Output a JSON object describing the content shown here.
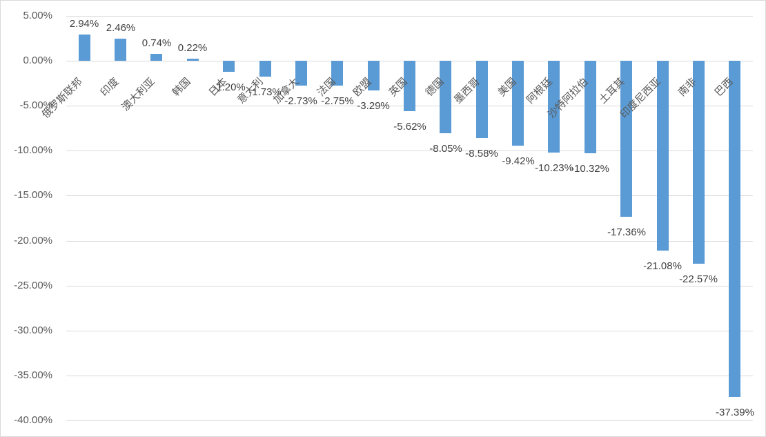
{
  "chart_data": {
    "type": "bar",
    "title": "",
    "legend": "none",
    "grid": true,
    "categories": [
      "俄罗斯联邦",
      "印度",
      "澳大利亚",
      "韩国",
      "日本",
      "意大利",
      "加拿大",
      "法国",
      "欧盟",
      "英国",
      "德国",
      "墨西哥",
      "美国",
      "阿根廷",
      "沙特阿拉伯",
      "土耳其",
      "印度尼西亚",
      "南非",
      "巴西"
    ],
    "values": [
      2.94,
      2.46,
      0.74,
      0.22,
      -1.2,
      -1.73,
      -2.73,
      -2.75,
      -3.29,
      -5.62,
      -8.05,
      -8.58,
      -9.42,
      -10.23,
      -10.32,
      -17.36,
      -21.08,
      -22.57,
      -37.39
    ],
    "data_labels": [
      "2.94%",
      "2.46%",
      "0.74%",
      "0.22%",
      "-1.20%",
      "-1.73%",
      "-2.73%",
      "-2.75%",
      "-3.29%",
      "-5.62%",
      "-8.05%",
      "-8.58%",
      "-9.42%",
      "-10.23%",
      "-10.32%",
      "-17.36%",
      "-21.08%",
      "-22.57%",
      "-37.39%"
    ],
    "y_axis": {
      "tick_labels": [
        "5.00%",
        "0.00%",
        "-5.00%",
        "-10.00%",
        "-15.00%",
        "-20.00%",
        "-25.00%",
        "-30.00%",
        "-35.00%",
        "-40.00%"
      ],
      "max": 5,
      "min": -40,
      "step": 5,
      "format": "percent"
    },
    "x_axis": {
      "label_rotation_deg": 45,
      "position": "zero-line"
    },
    "colors": {
      "bar": "#5B9BD5",
      "gridline": "#D9D9D9",
      "axis_text": "#595959",
      "category_text": "#595959",
      "data_label_text": "#404040",
      "background": "#FFFFFF",
      "border": "#D9D9D9"
    }
  }
}
